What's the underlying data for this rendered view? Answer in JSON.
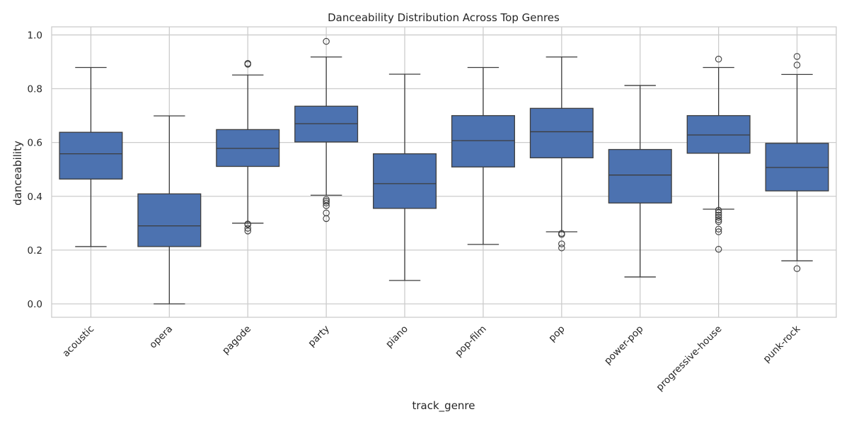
{
  "chart_data": {
    "type": "boxplot",
    "title": "Danceability Distribution Across Top Genres",
    "xlabel": "track_genre",
    "ylabel": "danceability",
    "ylim": [
      -0.05,
      1.03
    ],
    "yticks": [
      "0.0",
      "0.2",
      "0.4",
      "0.6",
      "0.8",
      "1.0"
    ],
    "grid": true,
    "box_color": "#4c72b0",
    "line_color": "#3d3d3d",
    "categories": [
      "acoustic",
      "opera",
      "pagode",
      "party",
      "piano",
      "pop-film",
      "pop",
      "power-pop",
      "progressive-house",
      "punk-rock"
    ],
    "boxes": [
      {
        "category": "acoustic",
        "whislo": 0.213,
        "q1": 0.464,
        "med": 0.558,
        "q3": 0.638,
        "whishi": 0.879,
        "fliers": []
      },
      {
        "category": "opera",
        "whislo": 0.0,
        "q1": 0.213,
        "med": 0.29,
        "q3": 0.409,
        "whishi": 0.699,
        "fliers": []
      },
      {
        "category": "pagode",
        "whislo": 0.3,
        "q1": 0.511,
        "med": 0.578,
        "q3": 0.648,
        "whishi": 0.851,
        "fliers": [
          0.271,
          0.281,
          0.295,
          0.297,
          0.891,
          0.894
        ]
      },
      {
        "category": "party",
        "whislo": 0.404,
        "q1": 0.602,
        "med": 0.67,
        "q3": 0.735,
        "whishi": 0.918,
        "fliers": [
          0.317,
          0.338,
          0.365,
          0.375,
          0.382,
          0.388,
          0.976
        ]
      },
      {
        "category": "piano",
        "whislo": 0.087,
        "q1": 0.355,
        "med": 0.447,
        "q3": 0.558,
        "whishi": 0.854,
        "fliers": []
      },
      {
        "category": "pop-film",
        "whislo": 0.221,
        "q1": 0.509,
        "med": 0.607,
        "q3": 0.7,
        "whishi": 0.879,
        "fliers": []
      },
      {
        "category": "pop",
        "whislo": 0.268,
        "q1": 0.543,
        "med": 0.64,
        "q3": 0.727,
        "whishi": 0.918,
        "fliers": [
          0.208,
          0.223,
          0.258,
          0.262
        ]
      },
      {
        "category": "power-pop",
        "whislo": 0.1,
        "q1": 0.375,
        "med": 0.479,
        "q3": 0.574,
        "whishi": 0.812,
        "fliers": []
      },
      {
        "category": "progressive-house",
        "whislo": 0.352,
        "q1": 0.56,
        "med": 0.628,
        "q3": 0.7,
        "whishi": 0.879,
        "fliers": [
          0.203,
          0.268,
          0.278,
          0.306,
          0.313,
          0.322,
          0.33,
          0.339,
          0.348,
          0.91
        ]
      },
      {
        "category": "punk-rock",
        "whislo": 0.16,
        "q1": 0.42,
        "med": 0.507,
        "q3": 0.597,
        "whishi": 0.853,
        "fliers": [
          0.131,
          0.888,
          0.92
        ]
      }
    ]
  }
}
